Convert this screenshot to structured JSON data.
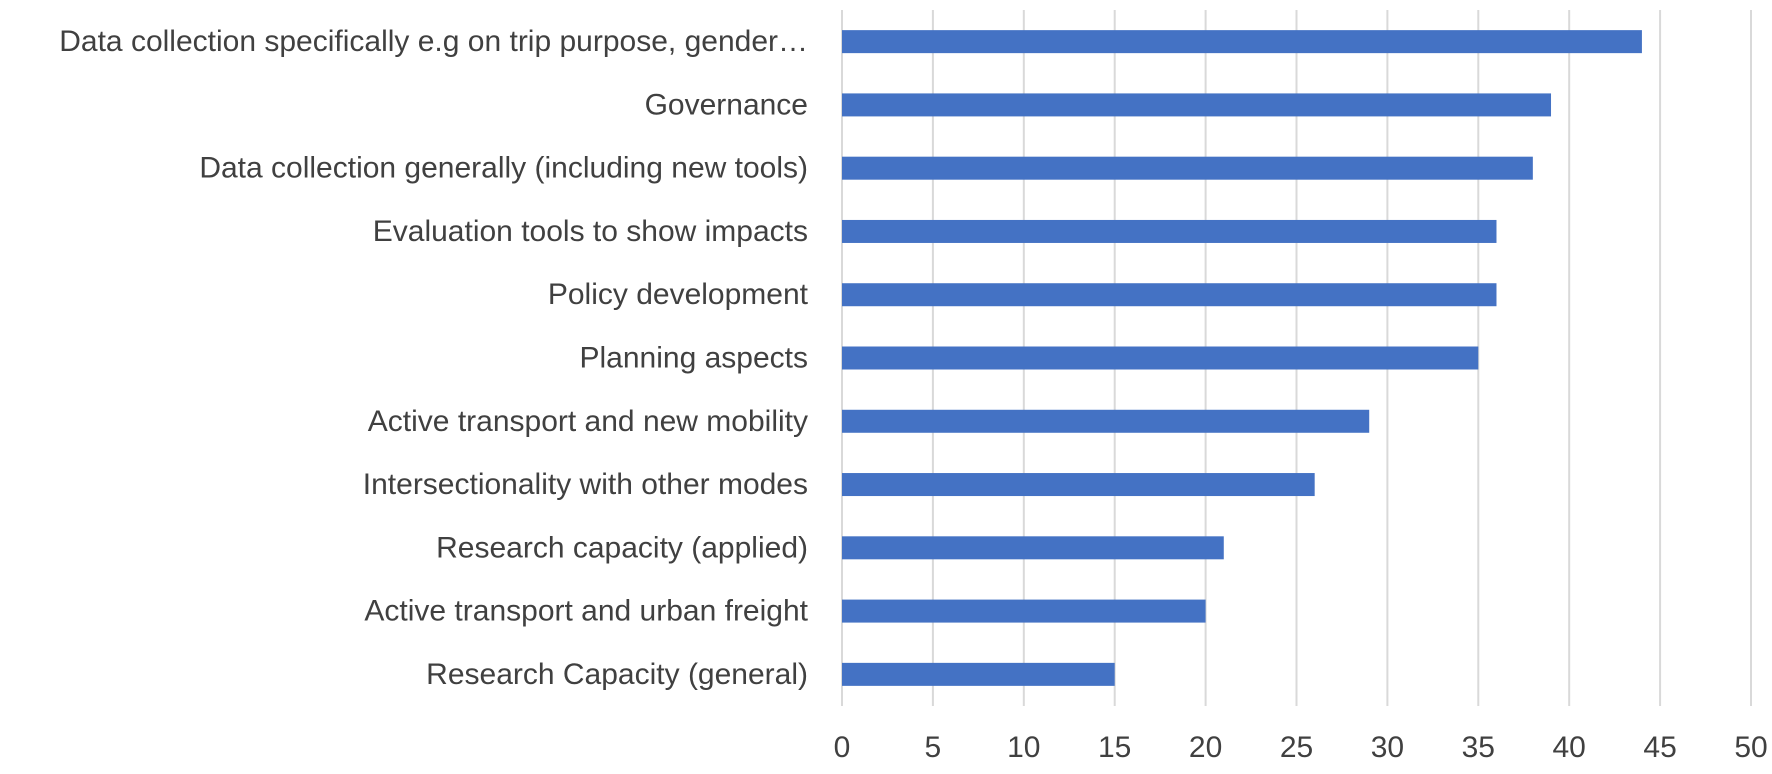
{
  "chart_data": {
    "type": "bar",
    "orientation": "horizontal",
    "categories": [
      "Data collection specifically e.g on trip purpose, gender…",
      "Governance",
      "Data collection generally (including new tools)",
      "Evaluation tools to show impacts",
      "Policy development",
      "Planning aspects",
      "Active transport and new mobility",
      "Intersectionality with other modes",
      "Research capacity (applied)",
      "Active transport and urban freight",
      "Research Capacity (general)"
    ],
    "values": [
      44,
      39,
      38,
      36,
      36,
      35,
      29,
      26,
      21,
      20,
      15
    ],
    "title": "",
    "xlabel": "",
    "ylabel": "",
    "xlim": [
      0,
      50
    ],
    "xticks": [
      "0",
      "5",
      "10",
      "15",
      "20",
      "25",
      "30",
      "35",
      "40",
      "45",
      "50"
    ],
    "grid": "vertical",
    "legend": "none",
    "bar_color": "#4472c4",
    "grid_color": "#d9d9d9",
    "text_color": "#404040"
  }
}
